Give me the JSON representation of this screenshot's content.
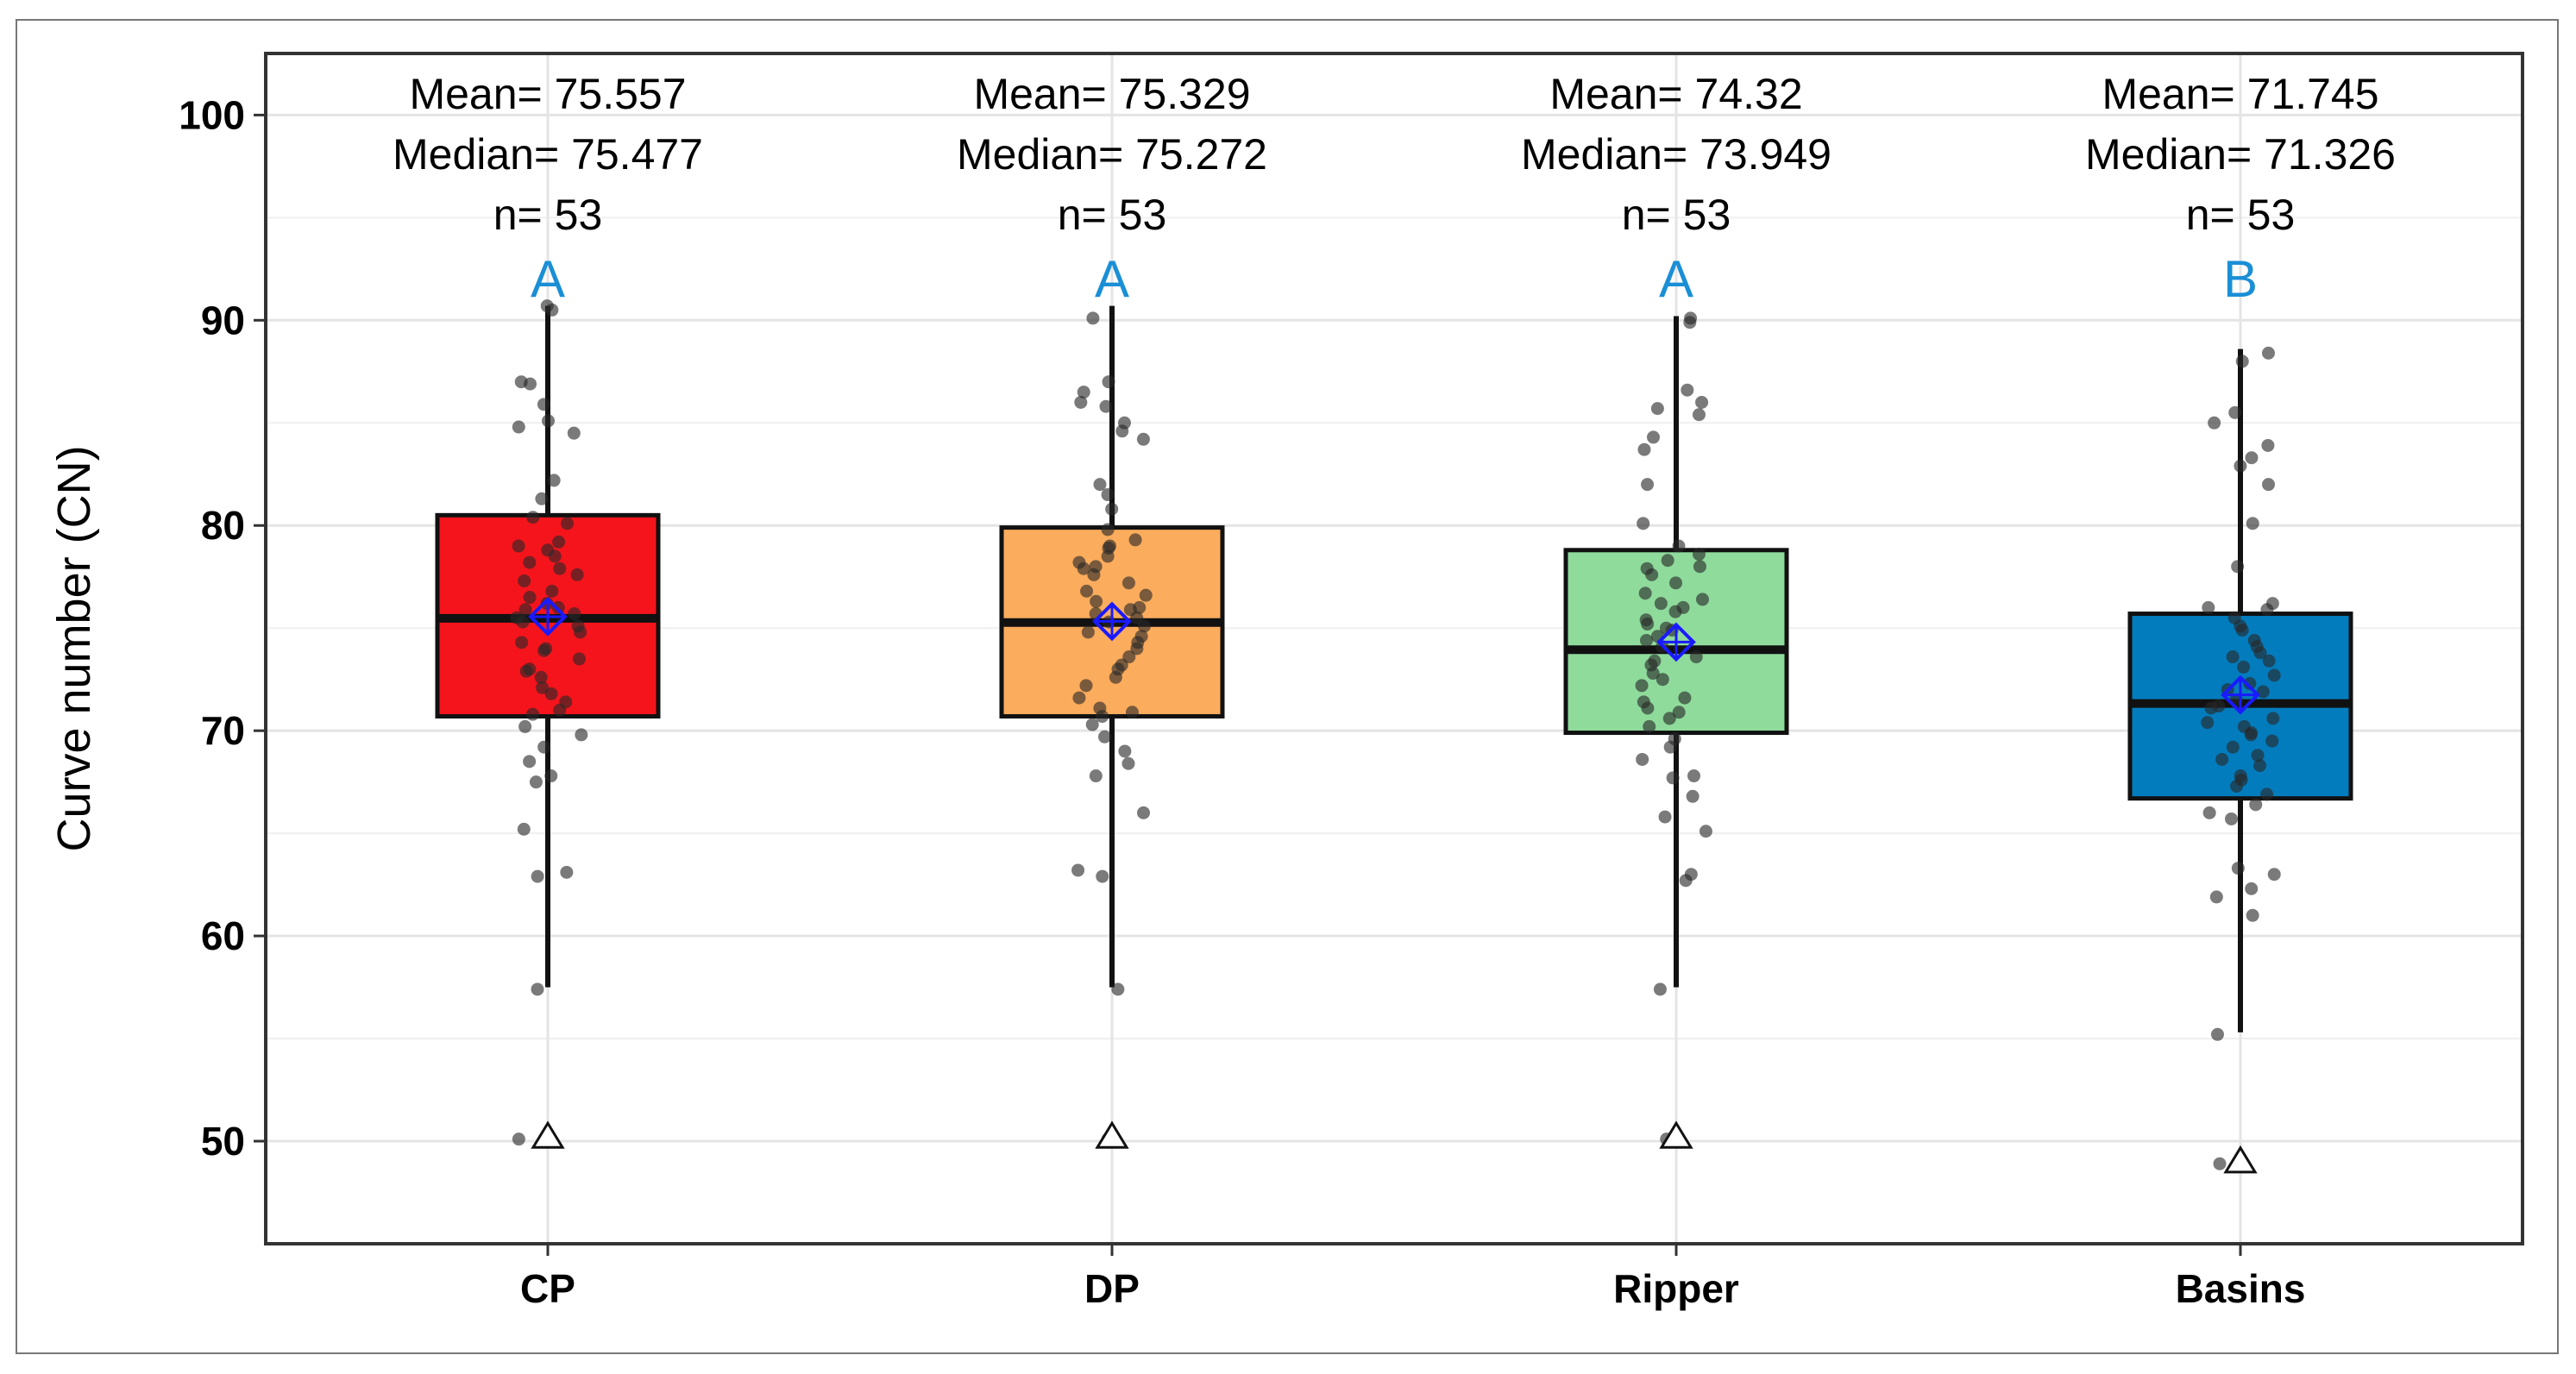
{
  "chart_data": {
    "type": "box",
    "title": "",
    "xlabel": "",
    "ylabel": "Curve number (CN)",
    "ylim": [
      45,
      103
    ],
    "yticks": [
      50,
      60,
      70,
      80,
      90,
      100
    ],
    "ytick_labels": [
      "50",
      "60",
      "70",
      "80",
      "90",
      "100"
    ],
    "grid": true,
    "categories": [
      "CP",
      "DP",
      "Ripper",
      "Basins"
    ],
    "colors": [
      "#f5141c",
      "#fbac5c",
      "#8fdb9c",
      "#037cbd"
    ],
    "mean_marker_color": "#1a1aff",
    "letter_color": "#1a8fd6",
    "boxes": [
      {
        "name": "CP",
        "whisker_low": 57.5,
        "q1": 70.7,
        "median": 75.477,
        "q3": 80.5,
        "whisker_high": 90.7,
        "mean": 75.557,
        "outliers": [
          50.2
        ],
        "mean_label": "Mean= 75.557",
        "median_label": "Median= 75.477",
        "n_label": "n= 53",
        "letter": "A",
        "points": [
          90.7,
          90.5,
          87.0,
          86.9,
          85.9,
          85.1,
          84.8,
          84.5,
          82.2,
          81.3,
          80.4,
          80.1,
          79.2,
          79.0,
          78.8,
          78.2,
          77.9,
          77.3,
          76.8,
          76.2,
          75.9,
          75.5,
          75.1,
          74.8,
          74.3,
          73.9,
          73.5,
          72.9,
          72.1,
          71.8,
          71.0,
          70.8,
          70.2,
          69.8,
          69.2,
          68.5,
          67.8,
          67.5,
          65.2,
          63.1,
          62.9,
          57.4,
          50.1,
          77.6,
          76.5,
          75.7,
          74.0,
          73.0,
          78.5,
          72.6,
          71.4,
          76.0,
          75.3
        ]
      },
      {
        "name": "DP",
        "whisker_low": 57.5,
        "q1": 70.7,
        "median": 75.272,
        "q3": 79.9,
        "whisker_high": 90.7,
        "mean": 75.329,
        "outliers": [
          50.2
        ],
        "mean_label": "Mean= 75.329",
        "median_label": "Median= 75.272",
        "n_label": "n= 53",
        "letter": "A",
        "points": [
          90.1,
          87.0,
          86.5,
          86.0,
          85.8,
          85.0,
          84.6,
          84.2,
          82.0,
          81.5,
          80.8,
          79.8,
          79.3,
          78.9,
          78.5,
          78.0,
          77.6,
          77.2,
          76.8,
          76.3,
          75.9,
          75.5,
          75.1,
          74.6,
          74.0,
          73.6,
          73.2,
          72.6,
          71.6,
          71.1,
          70.7,
          70.3,
          69.7,
          69.0,
          68.4,
          67.8,
          66.0,
          63.2,
          62.9,
          57.4,
          50.1,
          77.9,
          76.6,
          75.3,
          74.3,
          73.0,
          79.0,
          72.2,
          70.9,
          76.0,
          75.7,
          78.2,
          74.8
        ]
      },
      {
        "name": "Ripper",
        "whisker_low": 57.5,
        "q1": 69.9,
        "median": 73.949,
        "q3": 78.8,
        "whisker_high": 90.2,
        "mean": 74.32,
        "outliers": [
          50.2
        ],
        "mean_label": "Mean= 74.32",
        "median_label": "Median= 73.949",
        "n_label": "n= 53",
        "letter": "A",
        "points": [
          90.1,
          89.9,
          86.6,
          86.0,
          85.7,
          85.4,
          84.3,
          83.7,
          82.0,
          80.1,
          79.0,
          78.6,
          78.0,
          77.6,
          77.2,
          76.7,
          76.2,
          75.8,
          75.4,
          75.0,
          74.6,
          74.1,
          73.6,
          73.2,
          72.8,
          72.2,
          71.6,
          71.1,
          70.6,
          70.2,
          69.6,
          69.2,
          68.6,
          67.8,
          67.7,
          66.8,
          65.8,
          65.1,
          63.0,
          62.7,
          57.4,
          50.1,
          77.9,
          76.4,
          75.2,
          74.4,
          73.4,
          72.5,
          71.4,
          76.0,
          74.9,
          78.3,
          70.9
        ]
      },
      {
        "name": "Basins",
        "whisker_low": 55.3,
        "q1": 66.7,
        "median": 71.326,
        "q3": 75.7,
        "whisker_high": 88.6,
        "mean": 71.745,
        "outliers": [
          49.0
        ],
        "mean_label": "Mean= 71.745",
        "median_label": "Median= 71.326",
        "n_label": "n= 53",
        "letter": "B",
        "points": [
          88.4,
          88.0,
          85.5,
          85.0,
          83.9,
          83.3,
          82.9,
          82.0,
          80.1,
          78.0,
          76.2,
          75.9,
          75.5,
          75.1,
          74.4,
          73.8,
          73.4,
          73.1,
          72.7,
          72.3,
          71.9,
          71.5,
          71.1,
          70.6,
          70.2,
          69.8,
          69.2,
          68.8,
          68.3,
          67.8,
          67.3,
          66.9,
          66.4,
          66.0,
          65.7,
          63.3,
          63.0,
          62.3,
          61.9,
          61.0,
          55.2,
          48.9,
          74.9,
          72.0,
          70.4,
          69.5,
          67.6,
          76.0,
          73.6,
          71.2,
          69.9,
          68.6,
          74.1
        ]
      }
    ]
  }
}
